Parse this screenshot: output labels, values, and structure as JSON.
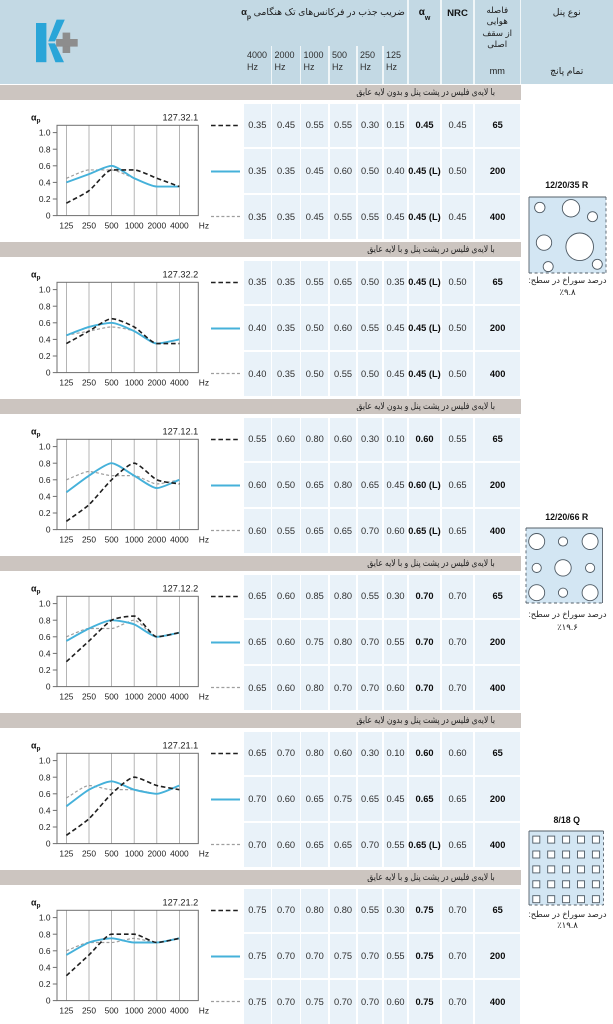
{
  "document": {
    "brand": "Knauf K-plus",
    "language": "fa"
  },
  "colors": {
    "header_bg": "#c3d9e4",
    "row_bg": "#e9f2f9",
    "band_bg": "#ccc5c0",
    "panel_fill": "#d3e6f3",
    "hole_stroke": "#4e5a64",
    "brand_blue": "#2aa5d8",
    "plus_gray": "#8d8d8d",
    "line_blue": "#45b1da",
    "line_black": "#1f1f1f",
    "line_gray": "#9e9e9e",
    "grid_gray": "#909090"
  },
  "header": {
    "freq_title": "ضریب جذب در فرکانس‌های تک هنگامی",
    "freq_symbol_base": "α",
    "freq_symbol_sub": "p",
    "freq_values": [
      "4000",
      "2000",
      "1000",
      "500",
      "250",
      "125"
    ],
    "freq_unit": "Hz",
    "alpha_w_base": "α",
    "alpha_w_sub": "w",
    "nrc_label": "NRC",
    "gap_lines": [
      "فاصله",
      "هوایی",
      "از سقف",
      "اصلی"
    ],
    "gap_unit": "mm",
    "panel_type_label": "نوع پنل",
    "panel_subtype_label": "تمام پانچ"
  },
  "sections": [
    {
      "band_label": "با لایه‌ی فلیس در پشت پنل و بدون لایه عایق",
      "chart_id": "127.32.1",
      "rows": [
        {
          "line": "black-dashed",
          "freq": [
            "0.35",
            "0.45",
            "0.55",
            "0.55",
            "0.30",
            "0.15"
          ],
          "alpha_w": "0.45",
          "nrc": "0.45",
          "gap": "65"
        },
        {
          "line": "blue-solid",
          "freq": [
            "0.35",
            "0.35",
            "0.45",
            "0.60",
            "0.50",
            "0.40"
          ],
          "alpha_w": "0.45 (L)",
          "nrc": "0.50",
          "gap": "200"
        },
        {
          "line": "gray-dashed",
          "freq": [
            "0.35",
            "0.35",
            "0.45",
            "0.55",
            "0.55",
            "0.45"
          ],
          "alpha_w": "0.45 (L)",
          "nrc": "0.45",
          "gap": "400"
        }
      ]
    },
    {
      "band_label": "با لایه‌ی فلیس در پشت پنل و با لایه عایق",
      "chart_id": "127.32.2",
      "rows": [
        {
          "line": "black-dashed",
          "freq": [
            "0.35",
            "0.35",
            "0.55",
            "0.65",
            "0.50",
            "0.35"
          ],
          "alpha_w": "0.45 (L)",
          "nrc": "0.50",
          "gap": "65"
        },
        {
          "line": "blue-solid",
          "freq": [
            "0.40",
            "0.35",
            "0.50",
            "0.60",
            "0.55",
            "0.45"
          ],
          "alpha_w": "0.45 (L)",
          "nrc": "0.50",
          "gap": "200"
        },
        {
          "line": "gray-dashed",
          "freq": [
            "0.40",
            "0.35",
            "0.50",
            "0.55",
            "0.50",
            "0.45"
          ],
          "alpha_w": "0.45 (L)",
          "nrc": "0.50",
          "gap": "400"
        }
      ]
    },
    {
      "band_label": "با لایه‌ی فلیس در پشت پنل و بدون لایه عایق",
      "chart_id": "127.12.1",
      "rows": [
        {
          "line": "black-dashed",
          "freq": [
            "0.55",
            "0.60",
            "0.80",
            "0.60",
            "0.30",
            "0.10"
          ],
          "alpha_w": "0.60",
          "nrc": "0.55",
          "gap": "65"
        },
        {
          "line": "blue-solid",
          "freq": [
            "0.60",
            "0.50",
            "0.65",
            "0.80",
            "0.65",
            "0.45"
          ],
          "alpha_w": "0.60 (L)",
          "nrc": "0.65",
          "gap": "200"
        },
        {
          "line": "gray-dashed",
          "freq": [
            "0.60",
            "0.55",
            "0.65",
            "0.65",
            "0.70",
            "0.60"
          ],
          "alpha_w": "0.65 (L)",
          "nrc": "0.65",
          "gap": "400"
        }
      ]
    },
    {
      "band_label": "با لایه‌ی فلیس در پشت پنل و با لایه عایق",
      "chart_id": "127.12.2",
      "rows": [
        {
          "line": "black-dashed",
          "freq": [
            "0.65",
            "0.60",
            "0.85",
            "0.80",
            "0.55",
            "0.30"
          ],
          "alpha_w": "0.70",
          "nrc": "0.70",
          "gap": "65"
        },
        {
          "line": "blue-solid",
          "freq": [
            "0.65",
            "0.60",
            "0.75",
            "0.80",
            "0.70",
            "0.55"
          ],
          "alpha_w": "0.70",
          "nrc": "0.70",
          "gap": "200"
        },
        {
          "line": "gray-dashed",
          "freq": [
            "0.65",
            "0.60",
            "0.80",
            "0.70",
            "0.70",
            "0.60"
          ],
          "alpha_w": "0.70",
          "nrc": "0.70",
          "gap": "400"
        }
      ]
    },
    {
      "band_label": "با لایه‌ی فلیس در پشت پنل و بدون لایه عایق",
      "chart_id": "127.21.1",
      "rows": [
        {
          "line": "black-dashed",
          "freq": [
            "0.65",
            "0.70",
            "0.80",
            "0.60",
            "0.30",
            "0.10"
          ],
          "alpha_w": "0.60",
          "nrc": "0.60",
          "gap": "65"
        },
        {
          "line": "blue-solid",
          "freq": [
            "0.70",
            "0.60",
            "0.65",
            "0.75",
            "0.65",
            "0.45"
          ],
          "alpha_w": "0.65",
          "nrc": "0.65",
          "gap": "200"
        },
        {
          "line": "gray-dashed",
          "freq": [
            "0.70",
            "0.60",
            "0.65",
            "0.65",
            "0.70",
            "0.55"
          ],
          "alpha_w": "0.65 (L)",
          "nrc": "0.65",
          "gap": "400"
        }
      ]
    },
    {
      "band_label": "با لایه‌ی فلیس در پشت پنل و با لایه عایق",
      "chart_id": "127.21.2",
      "rows": [
        {
          "line": "black-dashed",
          "freq": [
            "0.75",
            "0.70",
            "0.80",
            "0.80",
            "0.55",
            "0.30"
          ],
          "alpha_w": "0.75",
          "nrc": "0.70",
          "gap": "65"
        },
        {
          "line": "blue-solid",
          "freq": [
            "0.75",
            "0.70",
            "0.70",
            "0.75",
            "0.70",
            "0.55"
          ],
          "alpha_w": "0.75",
          "nrc": "0.70",
          "gap": "200"
        },
        {
          "line": "gray-dashed",
          "freq": [
            "0.75",
            "0.70",
            "0.75",
            "0.70",
            "0.70",
            "0.60"
          ],
          "alpha_w": "0.75",
          "nrc": "0.70",
          "gap": "400"
        }
      ]
    }
  ],
  "panels": [
    {
      "name": "12/20/35 R",
      "pattern": "random-circles",
      "caption": "درصد سوراخ در سطح:",
      "percent": "٪۹.۸"
    },
    {
      "name": "12/20/66 R",
      "pattern": "grid-circles",
      "caption": "درصد سوراخ در سطح:",
      "percent": "٪۱۹.۶"
    },
    {
      "name": "8/18 Q",
      "pattern": "grid-squares",
      "caption": "درصد سوراخ در سطح:",
      "percent": "٪۱۹.۸"
    }
  ],
  "chart_axis": {
    "y_tick_labels": [
      "1.0",
      "0.8",
      "0.6",
      "0.4",
      "0.2",
      "0"
    ],
    "x_tick_labels": [
      "125",
      "250",
      "500",
      "1000",
      "2000",
      "4000"
    ],
    "x_unit": "Hz",
    "y_symbol_base": "α",
    "y_symbol_sub": "p"
  },
  "chart_data": [
    {
      "type": "line",
      "title": "127.32.1",
      "xlabel": "Hz",
      "ylabel": "αp",
      "x": [
        125,
        250,
        500,
        1000,
        2000,
        4000
      ],
      "ylim": [
        0,
        1.0
      ],
      "series": [
        {
          "name": "65",
          "style": "black-dashed",
          "values": [
            0.15,
            0.3,
            0.55,
            0.55,
            0.45,
            0.35
          ]
        },
        {
          "name": "200",
          "style": "blue-solid",
          "values": [
            0.4,
            0.5,
            0.6,
            0.45,
            0.35,
            0.35
          ]
        },
        {
          "name": "400",
          "style": "gray-dashed",
          "values": [
            0.45,
            0.55,
            0.55,
            0.45,
            0.35,
            0.35
          ]
        }
      ]
    },
    {
      "type": "line",
      "title": "127.32.2",
      "xlabel": "Hz",
      "ylabel": "αp",
      "x": [
        125,
        250,
        500,
        1000,
        2000,
        4000
      ],
      "ylim": [
        0,
        1.0
      ],
      "series": [
        {
          "name": "65",
          "style": "black-dashed",
          "values": [
            0.35,
            0.5,
            0.65,
            0.55,
            0.35,
            0.35
          ]
        },
        {
          "name": "200",
          "style": "blue-solid",
          "values": [
            0.45,
            0.55,
            0.6,
            0.5,
            0.35,
            0.4
          ]
        },
        {
          "name": "400",
          "style": "gray-dashed",
          "values": [
            0.45,
            0.5,
            0.55,
            0.5,
            0.35,
            0.4
          ]
        }
      ]
    },
    {
      "type": "line",
      "title": "127.12.1",
      "xlabel": "Hz",
      "ylabel": "αp",
      "x": [
        125,
        250,
        500,
        1000,
        2000,
        4000
      ],
      "ylim": [
        0,
        1.0
      ],
      "series": [
        {
          "name": "65",
          "style": "black-dashed",
          "values": [
            0.1,
            0.3,
            0.6,
            0.8,
            0.6,
            0.55
          ]
        },
        {
          "name": "200",
          "style": "blue-solid",
          "values": [
            0.45,
            0.65,
            0.8,
            0.65,
            0.5,
            0.6
          ]
        },
        {
          "name": "400",
          "style": "gray-dashed",
          "values": [
            0.6,
            0.7,
            0.65,
            0.65,
            0.55,
            0.6
          ]
        }
      ]
    },
    {
      "type": "line",
      "title": "127.12.2",
      "xlabel": "Hz",
      "ylabel": "αp",
      "x": [
        125,
        250,
        500,
        1000,
        2000,
        4000
      ],
      "ylim": [
        0,
        1.0
      ],
      "series": [
        {
          "name": "65",
          "style": "black-dashed",
          "values": [
            0.3,
            0.55,
            0.8,
            0.85,
            0.6,
            0.65
          ]
        },
        {
          "name": "200",
          "style": "blue-solid",
          "values": [
            0.55,
            0.7,
            0.8,
            0.75,
            0.6,
            0.65
          ]
        },
        {
          "name": "400",
          "style": "gray-dashed",
          "values": [
            0.6,
            0.7,
            0.7,
            0.8,
            0.6,
            0.65
          ]
        }
      ]
    },
    {
      "type": "line",
      "title": "127.21.1",
      "xlabel": "Hz",
      "ylabel": "αp",
      "x": [
        125,
        250,
        500,
        1000,
        2000,
        4000
      ],
      "ylim": [
        0,
        1.0
      ],
      "series": [
        {
          "name": "65",
          "style": "black-dashed",
          "values": [
            0.1,
            0.3,
            0.6,
            0.8,
            0.7,
            0.65
          ]
        },
        {
          "name": "200",
          "style": "blue-solid",
          "values": [
            0.45,
            0.65,
            0.75,
            0.65,
            0.6,
            0.7
          ]
        },
        {
          "name": "400",
          "style": "gray-dashed",
          "values": [
            0.55,
            0.7,
            0.65,
            0.65,
            0.6,
            0.7
          ]
        }
      ]
    },
    {
      "type": "line",
      "title": "127.21.2",
      "xlabel": "Hz",
      "ylabel": "αp",
      "x": [
        125,
        250,
        500,
        1000,
        2000,
        4000
      ],
      "ylim": [
        0,
        1.0
      ],
      "series": [
        {
          "name": "65",
          "style": "black-dashed",
          "values": [
            0.3,
            0.55,
            0.8,
            0.8,
            0.7,
            0.75
          ]
        },
        {
          "name": "200",
          "style": "blue-solid",
          "values": [
            0.55,
            0.7,
            0.75,
            0.7,
            0.7,
            0.75
          ]
        },
        {
          "name": "400",
          "style": "gray-dashed",
          "values": [
            0.6,
            0.7,
            0.7,
            0.75,
            0.7,
            0.75
          ]
        }
      ]
    }
  ]
}
